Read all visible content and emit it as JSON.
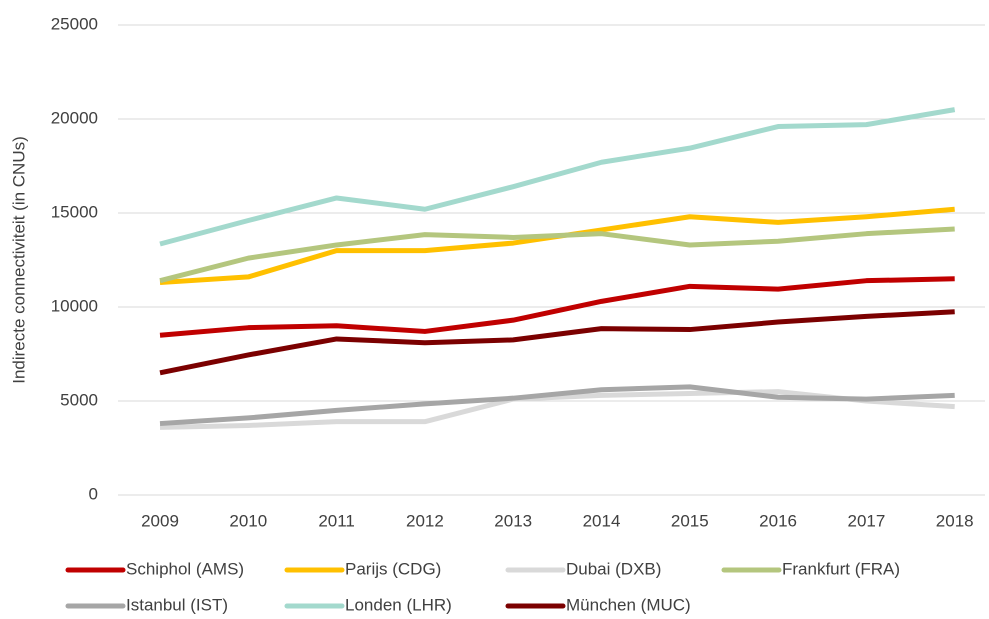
{
  "chart_data": {
    "type": "line",
    "y_label": "Indirecte connectiviteit (in CNUs)",
    "categories": [
      "2009",
      "2010",
      "2011",
      "2012",
      "2013",
      "2014",
      "2015",
      "2016",
      "2017",
      "2018"
    ],
    "ylim": [
      0,
      25000
    ],
    "yticks": [
      0,
      5000,
      10000,
      15000,
      20000,
      25000
    ],
    "grid": true,
    "series": [
      {
        "name": "Schiphol (AMS)",
        "color": "#c00000",
        "values": [
          8500,
          8900,
          9000,
          8700,
          9300,
          10300,
          11100,
          10950,
          11400,
          11500
        ]
      },
      {
        "name": "Parijs (CDG)",
        "color": "#ffc000",
        "values": [
          11300,
          11600,
          13000,
          13000,
          13400,
          14100,
          14800,
          14500,
          14800,
          15200
        ]
      },
      {
        "name": "Dubai (DXB)",
        "color": "#d9d9d9",
        "values": [
          3600,
          3700,
          3900,
          3900,
          5100,
          5300,
          5400,
          5500,
          5000,
          4700
        ]
      },
      {
        "name": "Frankfurt (FRA)",
        "color": "#b4c67e",
        "values": [
          11400,
          12600,
          13300,
          13850,
          13700,
          13900,
          13300,
          13500,
          13900,
          14150
        ]
      },
      {
        "name": "Istanbul (IST)",
        "color": "#a6a6a6",
        "values": [
          3800,
          4100,
          4500,
          4850,
          5150,
          5600,
          5750,
          5200,
          5100,
          5300
        ]
      },
      {
        "name": "Londen (LHR)",
        "color": "#a3d9cd",
        "values": [
          13350,
          14600,
          15800,
          15200,
          16400,
          17700,
          18450,
          19600,
          19700,
          20500
        ]
      },
      {
        "name": "München (MUC)",
        "color": "#7b0000",
        "values": [
          6500,
          7450,
          8300,
          8100,
          8250,
          8850,
          8800,
          9200,
          9500,
          9750
        ]
      }
    ]
  }
}
